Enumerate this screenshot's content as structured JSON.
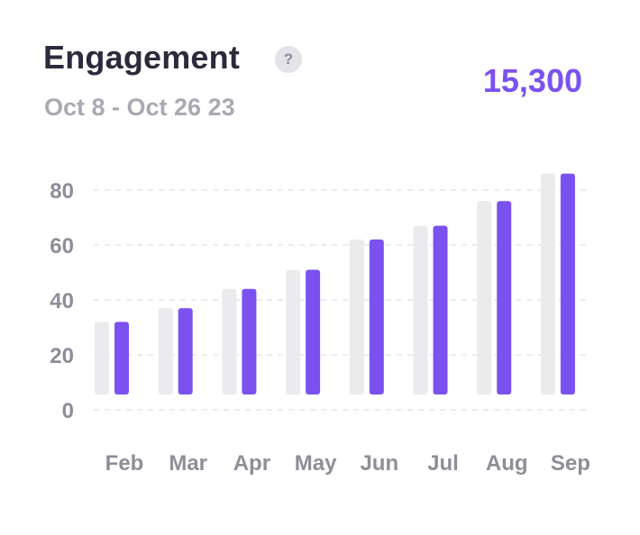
{
  "header": {
    "title": "Engagement",
    "help_label": "?",
    "date_range": "Oct 8 - Oct 26 23",
    "total": "15,300"
  },
  "chart_data": {
    "type": "bar",
    "categories": [
      "Feb",
      "Mar",
      "Apr",
      "May",
      "Jun",
      "Jul",
      "Aug",
      "Sep"
    ],
    "series": [
      {
        "values": [
          32,
          37,
          44,
          51,
          62,
          67,
          76,
          86
        ],
        "color": "#ebebee"
      },
      {
        "values": [
          32,
          37,
          44,
          51,
          62,
          67,
          76,
          86
        ],
        "color": "#7b52f0"
      }
    ],
    "yticks": [
      0,
      20,
      40,
      60,
      80
    ],
    "ylim": [
      0,
      90
    ],
    "grid": true,
    "legend": "none"
  }
}
